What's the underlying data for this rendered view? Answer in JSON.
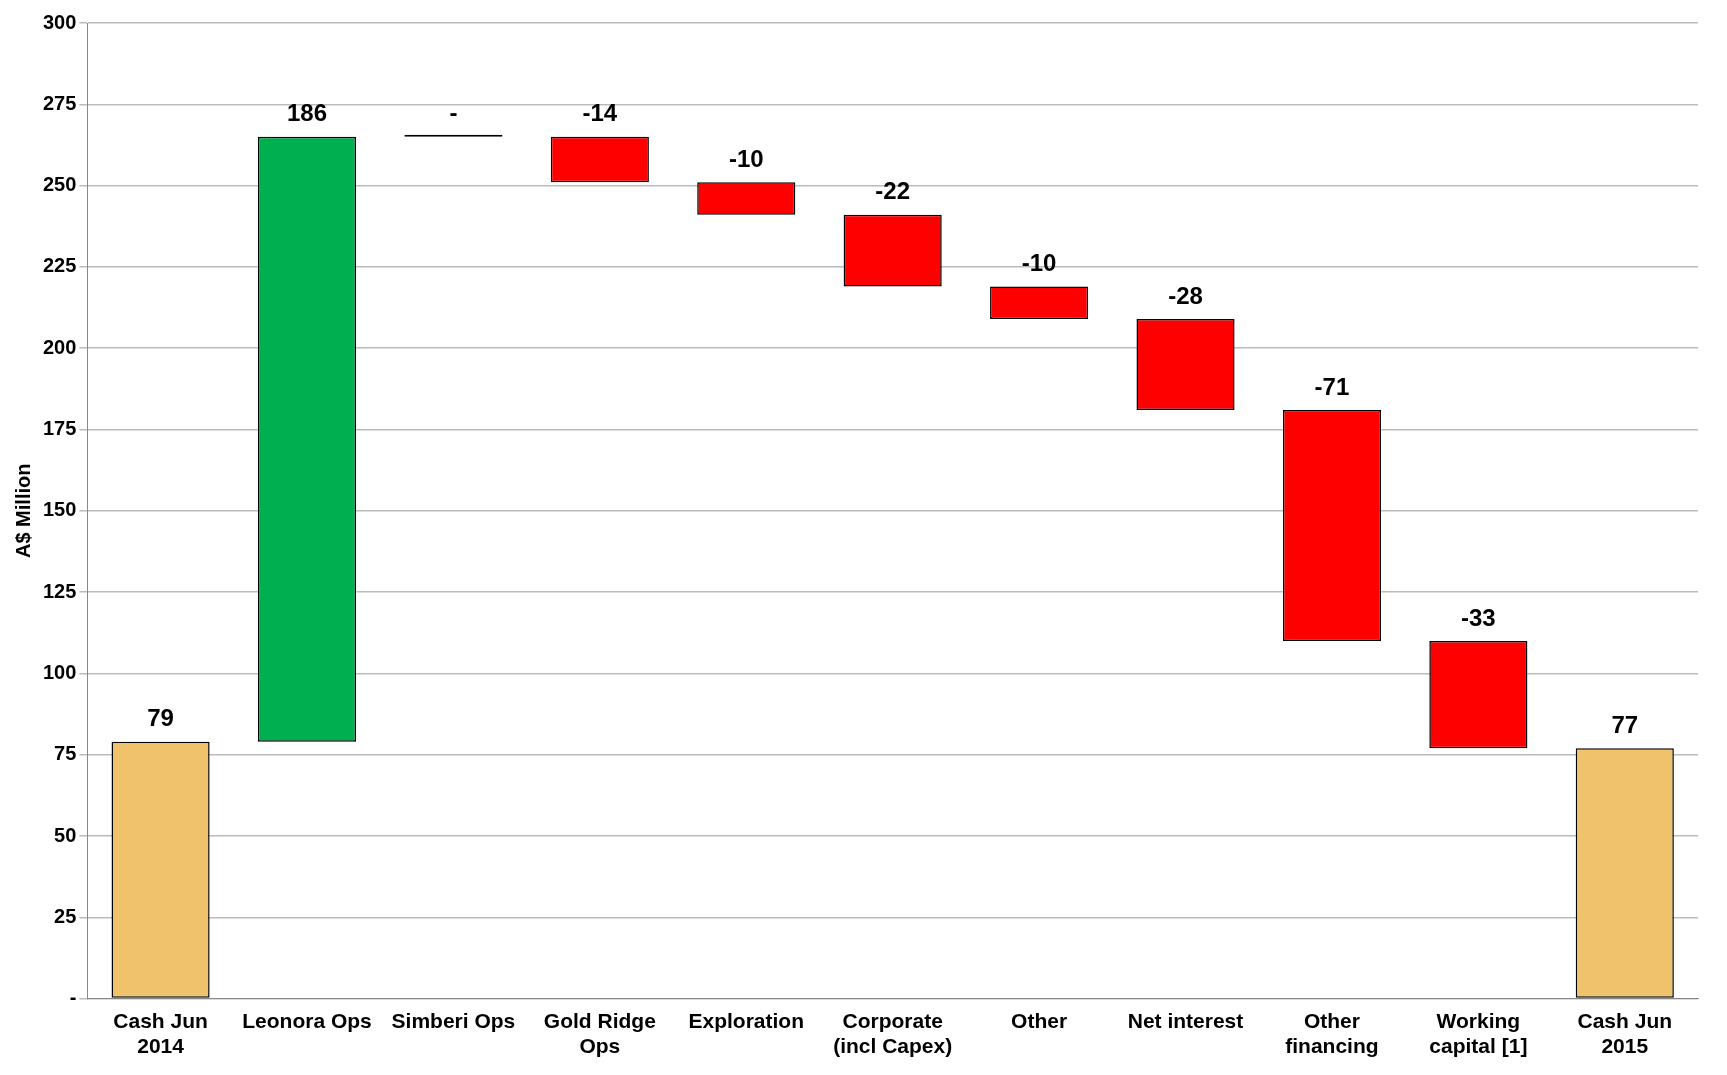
{
  "chart_data": {
    "type": "bar",
    "ylabel": "A$ Million",
    "categories": [
      "Cash Jun 2014",
      "Leonora Ops",
      "Simberi Ops",
      "Gold Ridge Ops",
      "Exploration",
      "Corporate (incl Capex)",
      "Other",
      "Net interest",
      "Other financing",
      "Working capital [1]",
      "Cash Jun 2015"
    ],
    "values": [
      79,
      186,
      0,
      -14,
      -10,
      -22,
      -10,
      -28,
      -71,
      -33,
      77
    ],
    "base": [
      0,
      79,
      265,
      265,
      251,
      241,
      219,
      209,
      181,
      110,
      0
    ],
    "colors": [
      "#f0c26c",
      "#00b050",
      "#000000",
      "#ff0000",
      "#ff0000",
      "#ff0000",
      "#ff0000",
      "#ff0000",
      "#ff0000",
      "#ff0000",
      "#f0c26c"
    ],
    "value_labels": [
      "79",
      "186",
      "-",
      "-14",
      "-10",
      "-22",
      "-10",
      "-28",
      "-71",
      "-33",
      "77"
    ],
    "ylim": [
      0,
      300
    ],
    "yticks": [
      {
        "value": 0,
        "label": "-"
      },
      25,
      50,
      75,
      100,
      125,
      150,
      175,
      200,
      225,
      250,
      275,
      300
    ],
    "grid": "y",
    "legend": false
  }
}
